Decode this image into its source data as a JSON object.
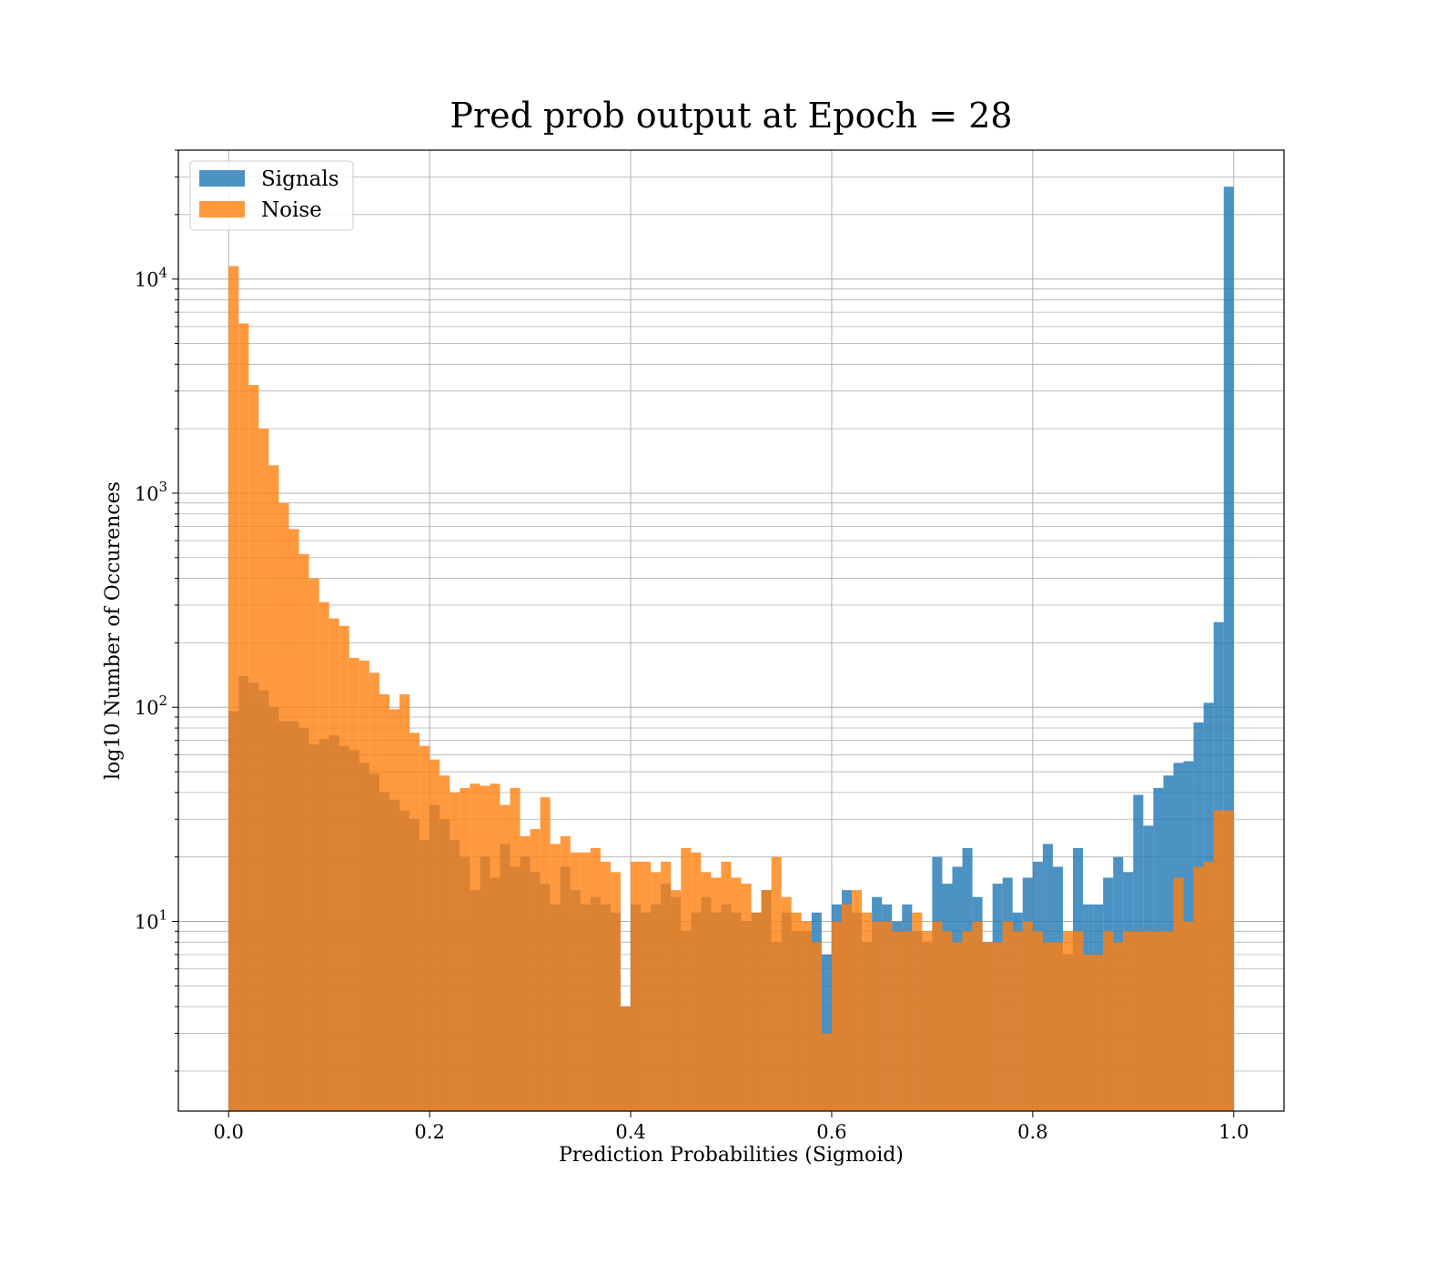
{
  "chart_data": {
    "type": "bar",
    "title": "Pred prob output at Epoch = 28",
    "xlabel": "Prediction Probabilities (Sigmoid)",
    "ylabel": "log10 Number of Occurences",
    "xlim": [
      -0.05,
      1.05
    ],
    "ylim": [
      1.3,
      40000
    ],
    "yscale": "log",
    "grid": true,
    "legend_position": "top-left",
    "x_ticks": [
      "0.0",
      "0.2",
      "0.4",
      "0.6",
      "0.8",
      "1.0"
    ],
    "x_tick_values": [
      0.0,
      0.2,
      0.4,
      0.6,
      0.8,
      1.0
    ],
    "y_ticks": [
      {
        "value": 10,
        "base": "10",
        "exp": "1"
      },
      {
        "value": 100,
        "base": "10",
        "exp": "2"
      },
      {
        "value": 1000,
        "base": "10",
        "exp": "3"
      },
      {
        "value": 10000,
        "base": "10",
        "exp": "4"
      }
    ],
    "bin_width": 0.01,
    "bin_start": 0.0,
    "series": [
      {
        "name": "Signals",
        "color": "#1f77b4",
        "alpha": 0.8,
        "values": [
          96,
          140,
          130,
          120,
          100,
          86,
          86,
          80,
          67,
          71,
          74,
          66,
          63,
          55,
          49,
          40,
          37,
          33,
          30,
          24,
          35,
          30,
          24,
          20,
          14,
          20,
          16,
          23,
          18,
          20,
          17,
          15,
          12,
          18,
          14,
          12,
          13,
          12,
          11,
          4,
          12,
          11,
          12,
          15,
          13,
          9,
          11,
          13,
          11,
          12,
          11,
          10,
          11,
          14,
          8,
          11,
          9,
          9,
          11,
          7,
          12,
          14,
          11,
          8,
          13,
          12,
          10,
          12,
          9,
          8,
          20,
          15,
          18,
          22,
          13,
          8,
          15,
          16,
          11,
          16,
          19,
          23,
          18,
          7,
          22,
          12,
          12,
          16,
          20,
          17,
          39,
          28,
          42,
          48,
          55,
          56,
          85,
          105,
          250,
          27000
        ]
      },
      {
        "name": "Noise",
        "color": "#ff7f0e",
        "alpha": 0.8,
        "values": [
          11500,
          6200,
          3200,
          2000,
          1350,
          900,
          680,
          520,
          400,
          310,
          260,
          240,
          170,
          165,
          145,
          115,
          98,
          115,
          76,
          66,
          57,
          48,
          40,
          42,
          44,
          43,
          44,
          35,
          42,
          25,
          27,
          38,
          23,
          25,
          21,
          21,
          22,
          19,
          17,
          4,
          19,
          19,
          17,
          19,
          14,
          22,
          21,
          17,
          16,
          19,
          16,
          15,
          11,
          14,
          20,
          13,
          11,
          10,
          8,
          3,
          10,
          12,
          14,
          11,
          10,
          10,
          9,
          9,
          11,
          9,
          10,
          9,
          8,
          9,
          10,
          8,
          8,
          10,
          9,
          10,
          9,
          8,
          8,
          9,
          9,
          7,
          7,
          9,
          8,
          9,
          9,
          9,
          9,
          9,
          16,
          10,
          18,
          19,
          33,
          33
        ]
      }
    ]
  }
}
